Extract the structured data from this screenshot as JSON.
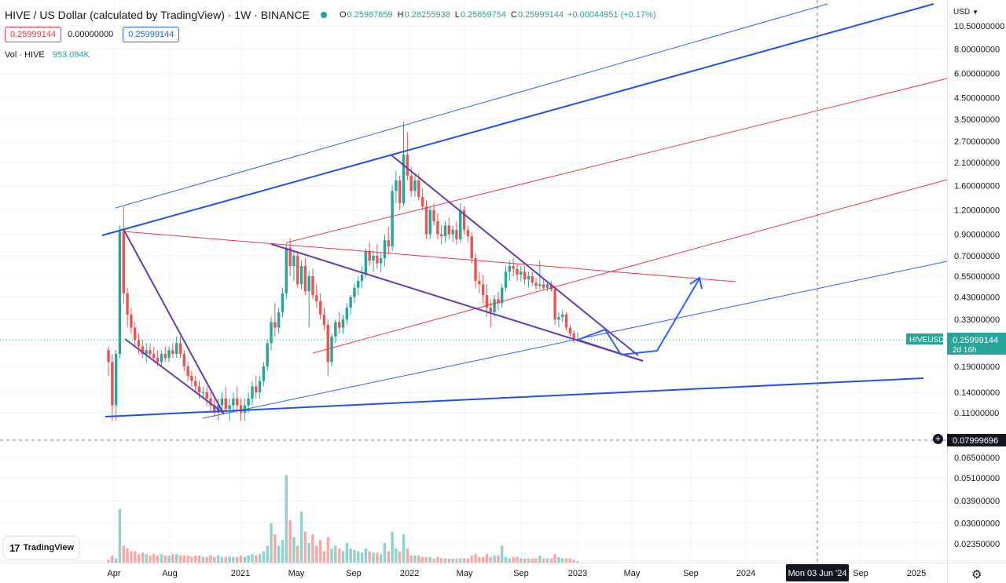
{
  "header": {
    "symbol": "HIVE / US Dollar (calculated by TradingView) · 1W · BINANCE",
    "ohlc": [
      {
        "k": "O",
        "v": "0.25987659"
      },
      {
        "k": "H",
        "v": "0.28255938"
      },
      {
        "k": "L",
        "v": "0.25659754"
      },
      {
        "k": "C",
        "v": "0.25999144"
      }
    ],
    "change": "+0.00044951 (+0.17%)",
    "sell": "0.25999144",
    "spread": "0.00000000",
    "buy": "0.25999144",
    "vol_label": "Vol · HIVE",
    "vol_value": "953.094K"
  },
  "axis_currency": "USD",
  "logo_text": "TradingView",
  "price_axis": [
    {
      "label": "10.50000000",
      "p": 10.5
    },
    {
      "label": "8.00000000",
      "p": 8.0
    },
    {
      "label": "6.00000000",
      "p": 6.0
    },
    {
      "label": "4.50000000",
      "p": 4.5
    },
    {
      "label": "3.50000000",
      "p": 3.5
    },
    {
      "label": "2.70000000",
      "p": 2.7
    },
    {
      "label": "2.10000000",
      "p": 2.1
    },
    {
      "label": "1.60000000",
      "p": 1.6
    },
    {
      "label": "1.20000000",
      "p": 1.2
    },
    {
      "label": "0.90000000",
      "p": 0.9
    },
    {
      "label": "0.70000000",
      "p": 0.7
    },
    {
      "label": "0.55000000",
      "p": 0.55
    },
    {
      "label": "0.43000000",
      "p": 0.43
    },
    {
      "label": "0.33000000",
      "p": 0.33
    },
    {
      "label": "0.19000000",
      "p": 0.19
    },
    {
      "label": "0.14000000",
      "p": 0.14
    },
    {
      "label": "0.11000000",
      "p": 0.11
    },
    {
      "label": "0.06500000",
      "p": 0.065
    },
    {
      "label": "0.05100000",
      "p": 0.051
    },
    {
      "label": "0.03900000",
      "p": 0.039
    },
    {
      "label": "0.03000000",
      "p": 0.03
    },
    {
      "label": "0.02350000",
      "p": 0.0235
    }
  ],
  "time_axis": [
    {
      "label": "Apr",
      "x": 145
    },
    {
      "label": "Aug",
      "x": 216
    },
    {
      "label": "2021",
      "x": 306
    },
    {
      "label": "May",
      "x": 377
    },
    {
      "label": "Sep",
      "x": 450
    },
    {
      "label": "2022",
      "x": 521
    },
    {
      "label": "May",
      "x": 591
    },
    {
      "label": "Sep",
      "x": 663
    },
    {
      "label": "2023",
      "x": 735
    },
    {
      "label": "May",
      "x": 804
    },
    {
      "label": "Sep",
      "x": 879
    },
    {
      "label": "2024",
      "x": 949
    },
    {
      "label": "Sep",
      "x": 1095
    },
    {
      "label": "2025",
      "x": 1166
    }
  ],
  "price_tags": [
    {
      "symbol": "HIVEUSD",
      "price": "0.25999144",
      "countdown": "2d 16h",
      "color": "#26a69a"
    },
    {
      "price": "0.07999696",
      "color": "#131722"
    }
  ],
  "crosshair_time": "Mon 03 Jun '24",
  "chart_data": {
    "type": "candlestick",
    "title": "HIVE / US Dollar (calculated by TradingView) · 1W · BINANCE",
    "yscale": "log",
    "ylim": [
      0.0225,
      10.8
    ],
    "x_range": [
      "2020-03",
      "2025-04"
    ],
    "candles": [
      {
        "o": 0.23,
        "h": 0.24,
        "l": 0.17,
        "c": 0.2
      },
      {
        "o": 0.2,
        "h": 0.22,
        "l": 0.1,
        "c": 0.12
      },
      {
        "o": 0.12,
        "h": 0.23,
        "l": 0.1,
        "c": 0.22
      },
      {
        "o": 0.22,
        "h": 1.0,
        "l": 0.21,
        "c": 0.93
      },
      {
        "o": 0.93,
        "h": 1.25,
        "l": 0.4,
        "c": 0.45
      },
      {
        "o": 0.45,
        "h": 0.48,
        "l": 0.3,
        "c": 0.35
      },
      {
        "o": 0.35,
        "h": 0.38,
        "l": 0.28,
        "c": 0.3
      },
      {
        "o": 0.3,
        "h": 0.32,
        "l": 0.24,
        "c": 0.26
      },
      {
        "o": 0.26,
        "h": 0.28,
        "l": 0.22,
        "c": 0.24
      },
      {
        "o": 0.24,
        "h": 0.26,
        "l": 0.21,
        "c": 0.22
      },
      {
        "o": 0.22,
        "h": 0.25,
        "l": 0.2,
        "c": 0.23
      },
      {
        "o": 0.23,
        "h": 0.25,
        "l": 0.21,
        "c": 0.22
      },
      {
        "o": 0.22,
        "h": 0.24,
        "l": 0.2,
        "c": 0.21
      },
      {
        "o": 0.21,
        "h": 0.23,
        "l": 0.19,
        "c": 0.2
      },
      {
        "o": 0.2,
        "h": 0.23,
        "l": 0.19,
        "c": 0.22
      },
      {
        "o": 0.22,
        "h": 0.24,
        "l": 0.2,
        "c": 0.21
      },
      {
        "o": 0.21,
        "h": 0.24,
        "l": 0.2,
        "c": 0.23
      },
      {
        "o": 0.23,
        "h": 0.25,
        "l": 0.21,
        "c": 0.22
      },
      {
        "o": 0.22,
        "h": 0.27,
        "l": 0.21,
        "c": 0.25
      },
      {
        "o": 0.25,
        "h": 0.27,
        "l": 0.21,
        "c": 0.22
      },
      {
        "o": 0.22,
        "h": 0.23,
        "l": 0.18,
        "c": 0.19
      },
      {
        "o": 0.19,
        "h": 0.2,
        "l": 0.16,
        "c": 0.17
      },
      {
        "o": 0.17,
        "h": 0.18,
        "l": 0.15,
        "c": 0.16
      },
      {
        "o": 0.16,
        "h": 0.17,
        "l": 0.14,
        "c": 0.15
      },
      {
        "o": 0.15,
        "h": 0.16,
        "l": 0.13,
        "c": 0.14
      },
      {
        "o": 0.14,
        "h": 0.15,
        "l": 0.13,
        "c": 0.14
      },
      {
        "o": 0.14,
        "h": 0.15,
        "l": 0.12,
        "c": 0.13
      },
      {
        "o": 0.13,
        "h": 0.14,
        "l": 0.11,
        "c": 0.12
      },
      {
        "o": 0.12,
        "h": 0.13,
        "l": 0.105,
        "c": 0.11
      },
      {
        "o": 0.11,
        "h": 0.13,
        "l": 0.1,
        "c": 0.12
      },
      {
        "o": 0.12,
        "h": 0.14,
        "l": 0.11,
        "c": 0.13
      },
      {
        "o": 0.13,
        "h": 0.15,
        "l": 0.11,
        "c": 0.115
      },
      {
        "o": 0.115,
        "h": 0.13,
        "l": 0.1,
        "c": 0.12
      },
      {
        "o": 0.12,
        "h": 0.14,
        "l": 0.11,
        "c": 0.13
      },
      {
        "o": 0.13,
        "h": 0.15,
        "l": 0.11,
        "c": 0.12
      },
      {
        "o": 0.12,
        "h": 0.13,
        "l": 0.1,
        "c": 0.11
      },
      {
        "o": 0.11,
        "h": 0.13,
        "l": 0.1,
        "c": 0.12
      },
      {
        "o": 0.12,
        "h": 0.14,
        "l": 0.11,
        "c": 0.13
      },
      {
        "o": 0.13,
        "h": 0.16,
        "l": 0.12,
        "c": 0.15
      },
      {
        "o": 0.15,
        "h": 0.17,
        "l": 0.13,
        "c": 0.14
      },
      {
        "o": 0.14,
        "h": 0.17,
        "l": 0.13,
        "c": 0.16
      },
      {
        "o": 0.16,
        "h": 0.2,
        "l": 0.15,
        "c": 0.19
      },
      {
        "o": 0.19,
        "h": 0.26,
        "l": 0.18,
        "c": 0.25
      },
      {
        "o": 0.25,
        "h": 0.34,
        "l": 0.23,
        "c": 0.32
      },
      {
        "o": 0.32,
        "h": 0.4,
        "l": 0.27,
        "c": 0.3
      },
      {
        "o": 0.3,
        "h": 0.38,
        "l": 0.28,
        "c": 0.36
      },
      {
        "o": 0.36,
        "h": 0.48,
        "l": 0.34,
        "c": 0.45
      },
      {
        "o": 0.45,
        "h": 0.82,
        "l": 0.42,
        "c": 0.77
      },
      {
        "o": 0.77,
        "h": 0.86,
        "l": 0.55,
        "c": 0.62
      },
      {
        "o": 0.62,
        "h": 0.75,
        "l": 0.52,
        "c": 0.7
      },
      {
        "o": 0.7,
        "h": 0.74,
        "l": 0.48,
        "c": 0.5
      },
      {
        "o": 0.5,
        "h": 0.66,
        "l": 0.47,
        "c": 0.62
      },
      {
        "o": 0.62,
        "h": 0.68,
        "l": 0.44,
        "c": 0.46
      },
      {
        "o": 0.46,
        "h": 0.58,
        "l": 0.3,
        "c": 0.55
      },
      {
        "o": 0.55,
        "h": 0.6,
        "l": 0.42,
        "c": 0.44
      },
      {
        "o": 0.44,
        "h": 0.5,
        "l": 0.38,
        "c": 0.41
      },
      {
        "o": 0.41,
        "h": 0.45,
        "l": 0.33,
        "c": 0.35
      },
      {
        "o": 0.35,
        "h": 0.38,
        "l": 0.29,
        "c": 0.31
      },
      {
        "o": 0.31,
        "h": 0.33,
        "l": 0.17,
        "c": 0.2
      },
      {
        "o": 0.2,
        "h": 0.28,
        "l": 0.19,
        "c": 0.27
      },
      {
        "o": 0.27,
        "h": 0.33,
        "l": 0.25,
        "c": 0.32
      },
      {
        "o": 0.32,
        "h": 0.36,
        "l": 0.28,
        "c": 0.3
      },
      {
        "o": 0.3,
        "h": 0.35,
        "l": 0.28,
        "c": 0.33
      },
      {
        "o": 0.33,
        "h": 0.4,
        "l": 0.31,
        "c": 0.38
      },
      {
        "o": 0.38,
        "h": 0.44,
        "l": 0.35,
        "c": 0.43
      },
      {
        "o": 0.43,
        "h": 0.5,
        "l": 0.4,
        "c": 0.48
      },
      {
        "o": 0.48,
        "h": 0.55,
        "l": 0.44,
        "c": 0.52
      },
      {
        "o": 0.52,
        "h": 0.62,
        "l": 0.48,
        "c": 0.56
      },
      {
        "o": 0.56,
        "h": 0.76,
        "l": 0.54,
        "c": 0.74
      },
      {
        "o": 0.74,
        "h": 0.82,
        "l": 0.62,
        "c": 0.66
      },
      {
        "o": 0.66,
        "h": 0.74,
        "l": 0.58,
        "c": 0.7
      },
      {
        "o": 0.7,
        "h": 0.8,
        "l": 0.6,
        "c": 0.64
      },
      {
        "o": 0.64,
        "h": 0.72,
        "l": 0.58,
        "c": 0.68
      },
      {
        "o": 0.68,
        "h": 0.9,
        "l": 0.62,
        "c": 0.84
      },
      {
        "o": 0.84,
        "h": 0.98,
        "l": 0.72,
        "c": 0.78
      },
      {
        "o": 0.78,
        "h": 1.6,
        "l": 0.74,
        "c": 1.5
      },
      {
        "o": 1.5,
        "h": 1.9,
        "l": 1.3,
        "c": 1.7
      },
      {
        "o": 1.7,
        "h": 1.8,
        "l": 1.2,
        "c": 1.3
      },
      {
        "o": 1.3,
        "h": 3.4,
        "l": 1.25,
        "c": 2.3
      },
      {
        "o": 2.3,
        "h": 3.0,
        "l": 1.7,
        "c": 1.8
      },
      {
        "o": 1.8,
        "h": 2.0,
        "l": 1.4,
        "c": 1.5
      },
      {
        "o": 1.5,
        "h": 1.8,
        "l": 1.4,
        "c": 1.7
      },
      {
        "o": 1.7,
        "h": 1.85,
        "l": 1.35,
        "c": 1.4
      },
      {
        "o": 1.4,
        "h": 1.55,
        "l": 1.2,
        "c": 1.25
      },
      {
        "o": 1.25,
        "h": 1.35,
        "l": 0.85,
        "c": 0.9
      },
      {
        "o": 0.9,
        "h": 1.25,
        "l": 0.85,
        "c": 1.2
      },
      {
        "o": 1.2,
        "h": 1.3,
        "l": 1.0,
        "c": 1.05
      },
      {
        "o": 1.05,
        "h": 1.15,
        "l": 0.85,
        "c": 0.9
      },
      {
        "o": 0.9,
        "h": 1.0,
        "l": 0.8,
        "c": 0.88
      },
      {
        "o": 0.88,
        "h": 1.05,
        "l": 0.82,
        "c": 1.0
      },
      {
        "o": 1.0,
        "h": 1.1,
        "l": 0.85,
        "c": 0.9
      },
      {
        "o": 0.9,
        "h": 1.0,
        "l": 0.82,
        "c": 0.95
      },
      {
        "o": 0.95,
        "h": 1.05,
        "l": 0.8,
        "c": 0.85
      },
      {
        "o": 0.85,
        "h": 1.3,
        "l": 0.82,
        "c": 1.2
      },
      {
        "o": 1.2,
        "h": 1.25,
        "l": 0.9,
        "c": 0.95
      },
      {
        "o": 0.95,
        "h": 1.0,
        "l": 0.82,
        "c": 0.88
      },
      {
        "o": 0.88,
        "h": 0.92,
        "l": 0.64,
        "c": 0.68
      },
      {
        "o": 0.68,
        "h": 0.72,
        "l": 0.48,
        "c": 0.52
      },
      {
        "o": 0.52,
        "h": 0.58,
        "l": 0.45,
        "c": 0.5
      },
      {
        "o": 0.5,
        "h": 0.56,
        "l": 0.4,
        "c": 0.44
      },
      {
        "o": 0.44,
        "h": 0.5,
        "l": 0.34,
        "c": 0.38
      },
      {
        "o": 0.38,
        "h": 0.42,
        "l": 0.3,
        "c": 0.36
      },
      {
        "o": 0.36,
        "h": 0.44,
        "l": 0.34,
        "c": 0.42
      },
      {
        "o": 0.42,
        "h": 0.46,
        "l": 0.37,
        "c": 0.4
      },
      {
        "o": 0.4,
        "h": 0.5,
        "l": 0.38,
        "c": 0.48
      },
      {
        "o": 0.48,
        "h": 0.62,
        "l": 0.46,
        "c": 0.58
      },
      {
        "o": 0.58,
        "h": 0.66,
        "l": 0.52,
        "c": 0.62
      },
      {
        "o": 0.62,
        "h": 0.68,
        "l": 0.55,
        "c": 0.6
      },
      {
        "o": 0.6,
        "h": 0.64,
        "l": 0.52,
        "c": 0.56
      },
      {
        "o": 0.56,
        "h": 0.62,
        "l": 0.52,
        "c": 0.58
      },
      {
        "o": 0.58,
        "h": 0.62,
        "l": 0.5,
        "c": 0.53
      },
      {
        "o": 0.53,
        "h": 0.58,
        "l": 0.48,
        "c": 0.55
      },
      {
        "o": 0.55,
        "h": 0.58,
        "l": 0.49,
        "c": 0.51
      },
      {
        "o": 0.51,
        "h": 0.54,
        "l": 0.47,
        "c": 0.49
      },
      {
        "o": 0.49,
        "h": 0.66,
        "l": 0.47,
        "c": 0.5
      },
      {
        "o": 0.5,
        "h": 0.53,
        "l": 0.47,
        "c": 0.48
      },
      {
        "o": 0.48,
        "h": 0.52,
        "l": 0.46,
        "c": 0.5
      },
      {
        "o": 0.5,
        "h": 0.52,
        "l": 0.46,
        "c": 0.47
      },
      {
        "o": 0.47,
        "h": 0.49,
        "l": 0.31,
        "c": 0.33
      },
      {
        "o": 0.33,
        "h": 0.36,
        "l": 0.3,
        "c": 0.34
      },
      {
        "o": 0.34,
        "h": 0.37,
        "l": 0.32,
        "c": 0.35
      },
      {
        "o": 0.35,
        "h": 0.36,
        "l": 0.29,
        "c": 0.3
      },
      {
        "o": 0.3,
        "h": 0.31,
        "l": 0.27,
        "c": 0.28
      },
      {
        "o": 0.28,
        "h": 0.29,
        "l": 0.25,
        "c": 0.26
      },
      {
        "o": 0.26,
        "h": 0.283,
        "l": 0.257,
        "c": 0.26
      }
    ],
    "volume_ylim": [
      0,
      1
    ],
    "volumes": [
      0.02,
      0.05,
      0.03,
      0.38,
      0.12,
      0.1,
      0.08,
      0.08,
      0.06,
      0.07,
      0.06,
      0.05,
      0.06,
      0.05,
      0.06,
      0.05,
      0.05,
      0.06,
      0.06,
      0.05,
      0.05,
      0.05,
      0.04,
      0.05,
      0.05,
      0.04,
      0.04,
      0.05,
      0.04,
      0.05,
      0.04,
      0.04,
      0.04,
      0.04,
      0.04,
      0.05,
      0.04,
      0.05,
      0.06,
      0.05,
      0.06,
      0.08,
      0.12,
      0.28,
      0.2,
      0.12,
      0.16,
      0.62,
      0.3,
      0.18,
      0.12,
      0.36,
      0.22,
      0.14,
      0.2,
      0.12,
      0.16,
      0.08,
      0.18,
      0.1,
      0.12,
      0.1,
      0.08,
      0.14,
      0.1,
      0.09,
      0.08,
      0.07,
      0.1,
      0.08,
      0.07,
      0.07,
      0.06,
      0.14,
      0.08,
      0.22,
      0.1,
      0.08,
      0.2,
      0.1,
      0.05,
      0.05,
      0.05,
      0.04,
      0.04,
      0.04,
      0.03,
      0.04,
      0.03,
      0.03,
      0.03,
      0.03,
      0.03,
      0.03,
      0.03,
      0.03,
      0.05,
      0.06,
      0.04,
      0.04,
      0.06,
      0.04,
      0.05,
      0.05,
      0.12,
      0.04,
      0.03,
      0.04,
      0.04,
      0.03,
      0.03,
      0.03,
      0.03,
      0.03,
      0.05,
      0.03,
      0.03,
      0.03,
      0.06,
      0.04,
      0.03,
      0.03,
      0.03,
      0.02,
      0.01
    ]
  }
}
